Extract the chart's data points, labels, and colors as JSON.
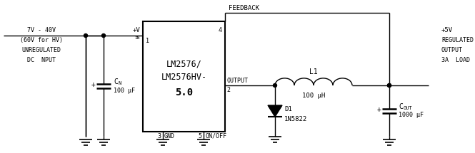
{
  "bg_color": "#ffffff",
  "line_color": "#000000",
  "figsize": [
    6.65,
    2.15
  ],
  "dpi": 100,
  "ic_label1": "LM2576/",
  "ic_label2": "LM2576HV-",
  "ic_label3": "5.0",
  "left_text_line1": "7V - 40V",
  "left_text_line2": "(60V for HV)",
  "left_text_line3": "UNREGULATED",
  "left_text_line4": "DC  NPUT",
  "right_text_line1": "+5V",
  "right_text_line2": "REGULATED",
  "right_text_line3": "OUTPUT",
  "right_text_line4": "3A  LOAD",
  "feedback_label": "FEEDBACK",
  "output_label": "OUTPUT",
  "gnd_label": "GND",
  "on_off_label": "ON/OFF",
  "pin1": "1",
  "pin2": "2",
  "pin3": "3",
  "pin4": "4",
  "pin5": "5",
  "cin_label": "C",
  "cin_sub": "N",
  "cin_val": "100 μF",
  "cout_label": "C",
  "cout_sub": "OUT",
  "cout_val": "1000 μF",
  "l1_label": "L1",
  "l1_val": "100 μH",
  "d1_label": "D1",
  "d1_val": "1N5822",
  "plus_sign": "+"
}
